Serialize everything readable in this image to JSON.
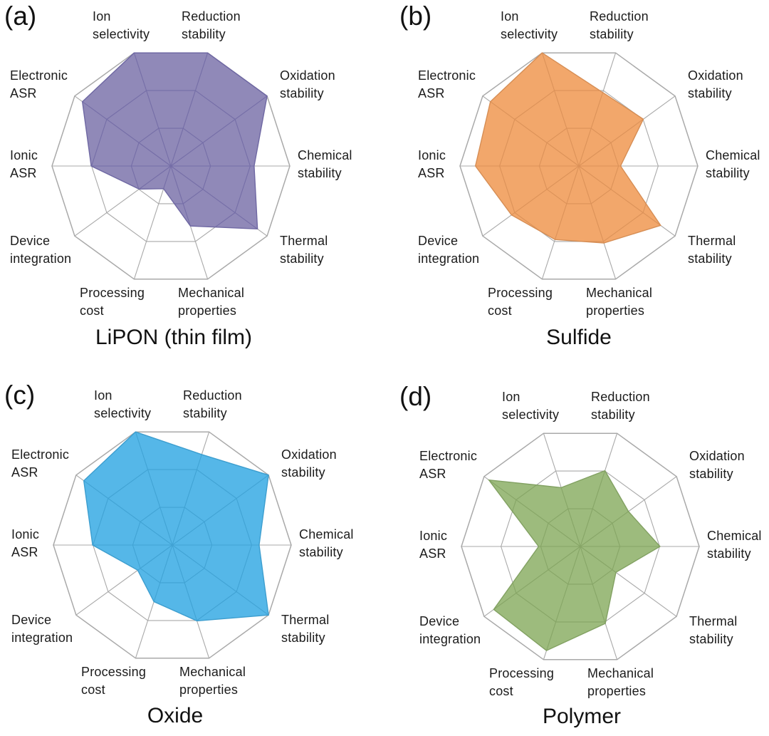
{
  "figure": {
    "background": "#ffffff",
    "text_color": "#1b1b1b",
    "grid_line_color": "#a9a9a9"
  },
  "chart_data": {
    "type": "radar",
    "axes": [
      "Ion selectivity",
      "Reduction stability",
      "Oxidation stability",
      "Chemical stability",
      "Thermal stability",
      "Mechanical properties",
      "Processing cost",
      "Device integration",
      "Ionic ASR",
      "Electronic ASR"
    ],
    "axes_two_line": [
      [
        "Ion",
        "selectivity"
      ],
      [
        "Reduction",
        "stability"
      ],
      [
        "Oxidation",
        "stability"
      ],
      [
        "Chemical",
        "stability"
      ],
      [
        "Thermal",
        "stability"
      ],
      [
        "Mechanical",
        "properties"
      ],
      [
        "Processing",
        "cost"
      ],
      [
        "Device",
        "integration"
      ],
      [
        "Ionic",
        "ASR"
      ],
      [
        "Electronic",
        "ASR"
      ]
    ],
    "ring_levels": [
      0.333,
      0.667,
      1.0
    ],
    "value_scale": "fraction of outer decagon radius (0 = center, 1 = outer ring)",
    "legend_position": "none",
    "grid_on": true,
    "charts": [
      {
        "panel_letter": "(a)",
        "title": "LiPON (thin film)",
        "fill_color": "#9089b8",
        "inner_grid_color": "#6f68a3",
        "values": [
          1.0,
          1.0,
          1.0,
          0.7,
          0.9,
          0.53,
          0.2,
          0.33,
          0.67,
          0.92
        ]
      },
      {
        "panel_letter": "(b)",
        "title": "Sulfide",
        "fill_color": "#f2a76b",
        "inner_grid_color": "#d68e55",
        "values": [
          1.0,
          0.65,
          0.67,
          0.35,
          0.85,
          0.68,
          0.65,
          0.7,
          0.87,
          0.92
        ]
      },
      {
        "panel_letter": "(c)",
        "title": "Oxide",
        "fill_color": "#55b7e8",
        "inner_grid_color": "#3d9ecf",
        "values": [
          1.0,
          0.8,
          1.0,
          0.73,
          1.0,
          0.67,
          0.5,
          0.36,
          0.67,
          0.92
        ]
      },
      {
        "panel_letter": "(d)",
        "title": "Polymer",
        "fill_color": "#9dbb7d",
        "inner_grid_color": "#82a162",
        "values": [
          0.52,
          0.67,
          0.5,
          0.67,
          0.37,
          0.68,
          0.92,
          0.9,
          0.35,
          0.95
        ]
      }
    ]
  }
}
